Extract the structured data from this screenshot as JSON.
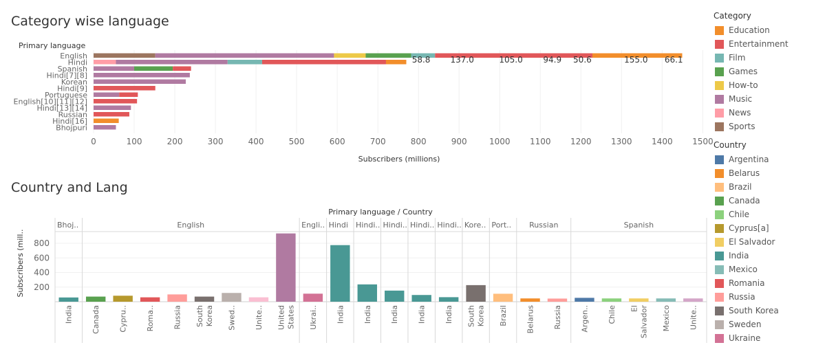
{
  "charts": {
    "top_title": "Category wise language",
    "bottom_title": "Country and Lang"
  },
  "legend": {
    "category_title": "Category",
    "categories": [
      {
        "name": "Education",
        "color": "#F28E2B"
      },
      {
        "name": "Entertainment",
        "color": "#E15759"
      },
      {
        "name": "Film",
        "color": "#76B7B2"
      },
      {
        "name": "Games",
        "color": "#59A14F"
      },
      {
        "name": "How-to",
        "color": "#EDC948"
      },
      {
        "name": "Music",
        "color": "#B07AA1"
      },
      {
        "name": "News",
        "color": "#FF9DA7"
      },
      {
        "name": "Sports",
        "color": "#9C755F"
      }
    ],
    "country_title": "Country",
    "countries": [
      {
        "name": "Argentina",
        "color": "#4E79A7"
      },
      {
        "name": "Belarus",
        "color": "#F28E2B"
      },
      {
        "name": "Brazil",
        "color": "#FFBE7D"
      },
      {
        "name": "Canada",
        "color": "#59A14F"
      },
      {
        "name": "Chile",
        "color": "#8CD17D"
      },
      {
        "name": "Cyprus[a]",
        "color": "#B6992D"
      },
      {
        "name": "El Salvador",
        "color": "#F1CE63"
      },
      {
        "name": "India",
        "color": "#499894"
      },
      {
        "name": "Mexico",
        "color": "#86BCB6"
      },
      {
        "name": "Romania",
        "color": "#E15759"
      },
      {
        "name": "Russia",
        "color": "#FF9D9A"
      },
      {
        "name": "South Korea",
        "color": "#79706E"
      },
      {
        "name": "Sweden",
        "color": "#BAB0AC"
      },
      {
        "name": "Ukraine",
        "color": "#D37295"
      }
    ]
  },
  "chart_data": [
    {
      "type": "bar",
      "orientation": "horizontal",
      "stacked": true,
      "title": "Category wise language",
      "ylabel": "Primary language",
      "xlabel": "Subscribers (millions)",
      "xlim": [
        0,
        1520
      ],
      "xticks": [
        0,
        100,
        200,
        300,
        400,
        500,
        600,
        700,
        800,
        900,
        1000,
        1100,
        1200,
        1300,
        1400,
        1500
      ],
      "grid": true,
      "categories": [
        "English",
        "Hindi",
        "Spanish",
        "Hindi[7][8]",
        "Korean",
        "Hindi[9]",
        "Portuguese",
        "English[10][11][12]",
        "Hindi[13][14]",
        "Russian",
        "Hindi[16]",
        "Bhojpuri"
      ],
      "rows": [
        {
          "label": "English",
          "segments": [
            {
              "category": "Sports",
              "value": 152
            },
            {
              "category": "Music",
              "value": 440
            },
            {
              "category": "How-to",
              "value": 78
            },
            {
              "category": "Games",
              "value": 112
            },
            {
              "category": "Film",
              "value": 58.8
            },
            {
              "category": "Entertainment",
              "value": 387.5
            },
            {
              "category": "Education",
              "value": 221.1
            }
          ]
        },
        {
          "label": "Hindi",
          "segments": [
            {
              "category": "News",
              "value": 55
            },
            {
              "category": "Music",
              "value": 275
            },
            {
              "category": "Film",
              "value": 85
            },
            {
              "category": "Entertainment",
              "value": 305
            },
            {
              "category": "Education",
              "value": 50
            }
          ]
        },
        {
          "label": "Spanish",
          "segments": [
            {
              "category": "Music",
              "value": 100
            },
            {
              "category": "Games",
              "value": 95
            },
            {
              "category": "Entertainment",
              "value": 45
            }
          ]
        },
        {
          "label": "Hindi[7][8]",
          "segments": [
            {
              "category": "Music",
              "value": 237
            }
          ]
        },
        {
          "label": "Korean",
          "segments": [
            {
              "category": "Music",
              "value": 227
            }
          ]
        },
        {
          "label": "Hindi[9]",
          "segments": [
            {
              "category": "Entertainment",
              "value": 152
            }
          ]
        },
        {
          "label": "Portuguese",
          "segments": [
            {
              "category": "Music",
              "value": 63
            },
            {
              "category": "Entertainment",
              "value": 46
            }
          ]
        },
        {
          "label": "English[10][11][12]",
          "segments": [
            {
              "category": "Entertainment",
              "value": 107
            }
          ]
        },
        {
          "label": "Hindi[13][14]",
          "segments": [
            {
              "category": "Music",
              "value": 92
            }
          ]
        },
        {
          "label": "Russian",
          "segments": [
            {
              "category": "Entertainment",
              "value": 88
            }
          ]
        },
        {
          "label": "Hindi[16]",
          "segments": [
            {
              "category": "Education",
              "value": 62
            }
          ]
        },
        {
          "label": "Bhojpuri",
          "segments": [
            {
              "category": "Music",
              "value": 55
            }
          ]
        }
      ],
      "annotations": [
        {
          "text": "58.8",
          "x": 810
        },
        {
          "text": "137.0",
          "x": 911
        },
        {
          "text": "105.0",
          "x": 1031
        },
        {
          "text": "94.9",
          "x": 1133
        },
        {
          "text": "50.6",
          "x": 1207
        },
        {
          "text": "155.0",
          "x": 1339
        },
        {
          "text": "66.1",
          "x": 1432
        }
      ]
    },
    {
      "type": "bar",
      "title": "Country and Lang",
      "header": "Primary language  /  Country",
      "ylabel": "Subscribers (mill..",
      "ylim": [
        0,
        960
      ],
      "yticks": [
        200,
        400,
        600,
        800
      ],
      "panels": [
        {
          "label": "Bhoj..",
          "bars": [
            {
              "country": "India",
              "value": 58
            }
          ]
        },
        {
          "label": "English",
          "bars": [
            {
              "country": "Canada",
              "value": 70
            },
            {
              "country": "Cypru..",
              "value": 82,
              "color": "#B6992D"
            },
            {
              "country": "Roma..",
              "value": 60,
              "color": "#E15759"
            },
            {
              "country": "Russia",
              "value": 100
            },
            {
              "country": "South Korea",
              "value": 70
            },
            {
              "country": "Swed..",
              "value": 120,
              "color": "#BAB0AC"
            },
            {
              "country": "Unite..",
              "value": 60,
              "color": "#FABFD2"
            },
            {
              "country": "United States",
              "value": 935,
              "color": "#B07AA1"
            }
          ]
        },
        {
          "label": "Engli..",
          "bars": [
            {
              "country": "Ukrai..",
              "value": 110,
              "color": "#D37295"
            }
          ]
        },
        {
          "label": "Hindi",
          "bars": [
            {
              "country": "India",
              "value": 775
            }
          ]
        },
        {
          "label": "Hindi..",
          "bars": [
            {
              "country": "India",
              "value": 237
            }
          ]
        },
        {
          "label": "Hindi..",
          "bars": [
            {
              "country": "India",
              "value": 152
            }
          ]
        },
        {
          "label": "Hindi..",
          "bars": [
            {
              "country": "India",
              "value": 92
            }
          ]
        },
        {
          "label": "Hindi..",
          "bars": [
            {
              "country": "India",
              "value": 62
            }
          ]
        },
        {
          "label": "Kore..",
          "bars": [
            {
              "country": "South Korea",
              "value": 227
            }
          ]
        },
        {
          "label": "Port..",
          "bars": [
            {
              "country": "Brazil",
              "value": 109
            }
          ]
        },
        {
          "label": "Russian",
          "bars": [
            {
              "country": "Belarus",
              "value": 45
            },
            {
              "country": "Russia",
              "value": 43
            }
          ]
        },
        {
          "label": "Spanish",
          "bars": [
            {
              "country": "Argen..",
              "value": 53,
              "color": "#4E79A7"
            },
            {
              "country": "Chile",
              "value": 45
            },
            {
              "country": "El Salvador",
              "value": 45
            },
            {
              "country": "Mexico",
              "value": 45
            },
            {
              "country": "Unite..",
              "value": 45,
              "color": "#D4A6C8"
            }
          ]
        }
      ]
    }
  ]
}
